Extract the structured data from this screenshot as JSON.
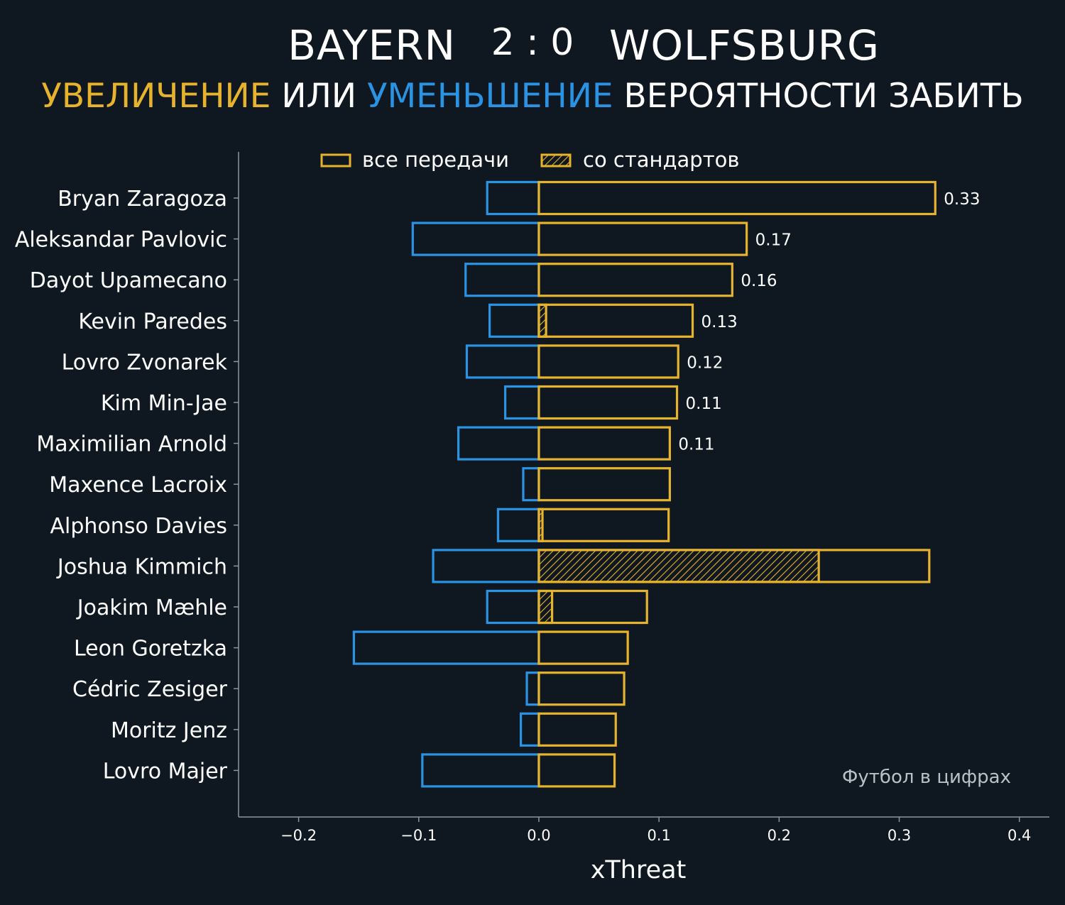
{
  "header": {
    "home_team": "BAYERN",
    "score": "2 : 0",
    "away_team": "WOLFSBURG",
    "subtitle_increase": "УВЕЛИЧЕНИЕ",
    "subtitle_or": " ИЛИ ",
    "subtitle_decrease": "УМЕНЬШЕНИЕ",
    "subtitle_rest": " ВЕРОЯТНОСТИ ЗАБИТЬ"
  },
  "footnote": "Футбол в цифрах",
  "colors": {
    "background": "#0f1820",
    "increase": "#e7b32c",
    "decrease": "#2a93e3",
    "axis": "#8b959d",
    "text": "#ffffff"
  },
  "chart_data": {
    "type": "bar",
    "orientation": "horizontal",
    "xlabel": "xThreat",
    "xlim": [
      -0.25,
      0.425
    ],
    "xticks": [
      -0.2,
      -0.1,
      0.0,
      0.1,
      0.2,
      0.3,
      0.4
    ],
    "xtick_labels": [
      "−0.2",
      "−0.1",
      "0.0",
      "0.1",
      "0.2",
      "0.3",
      "0.4"
    ],
    "legend_placement": "top",
    "legend": [
      {
        "label": "все передачи",
        "style": "outline"
      },
      {
        "label": "со стандартов",
        "style": "hatched"
      }
    ],
    "categories": [
      "Bryan Zaragoza",
      "Aleksandar Pavlovic",
      "Dayot Upamecano",
      "Kevin Paredes",
      "Lovro Zvonarek",
      "Kim Min-Jae",
      "Maximilian Arnold",
      "Maxence Lacroix",
      "Alphonso Davies",
      "Joshua Kimmich",
      "Joakim Mæhle",
      "Leon Goretzka",
      "Cédric Zesiger",
      "Moritz Jenz",
      "Lovro Majer"
    ],
    "series": [
      {
        "name": "все передачи",
        "values": [
          0.33,
          0.173,
          0.161,
          0.128,
          0.116,
          0.115,
          0.109,
          0.109,
          0.108,
          0.325,
          0.09,
          0.074,
          0.071,
          0.064,
          0.063
        ]
      },
      {
        "name": "со стандартов",
        "values": [
          0.0,
          0.0,
          0.0,
          0.006,
          0.0,
          0.0,
          0.0,
          0.0,
          0.003,
          0.233,
          0.011,
          0.0,
          0.0,
          0.0,
          0.0
        ]
      },
      {
        "values": [
          -0.043,
          -0.105,
          -0.061,
          -0.041,
          -0.06,
          -0.028,
          -0.067,
          -0.013,
          -0.034,
          -0.088,
          -0.043,
          -0.154,
          -0.01,
          -0.015,
          -0.097
        ]
      }
    ],
    "value_labels": [
      "0.33",
      "0.17",
      "0.16",
      "0.13",
      "0.12",
      "0.11",
      "0.11",
      "",
      "",
      "",
      "",
      "",
      "",
      "",
      ""
    ]
  }
}
